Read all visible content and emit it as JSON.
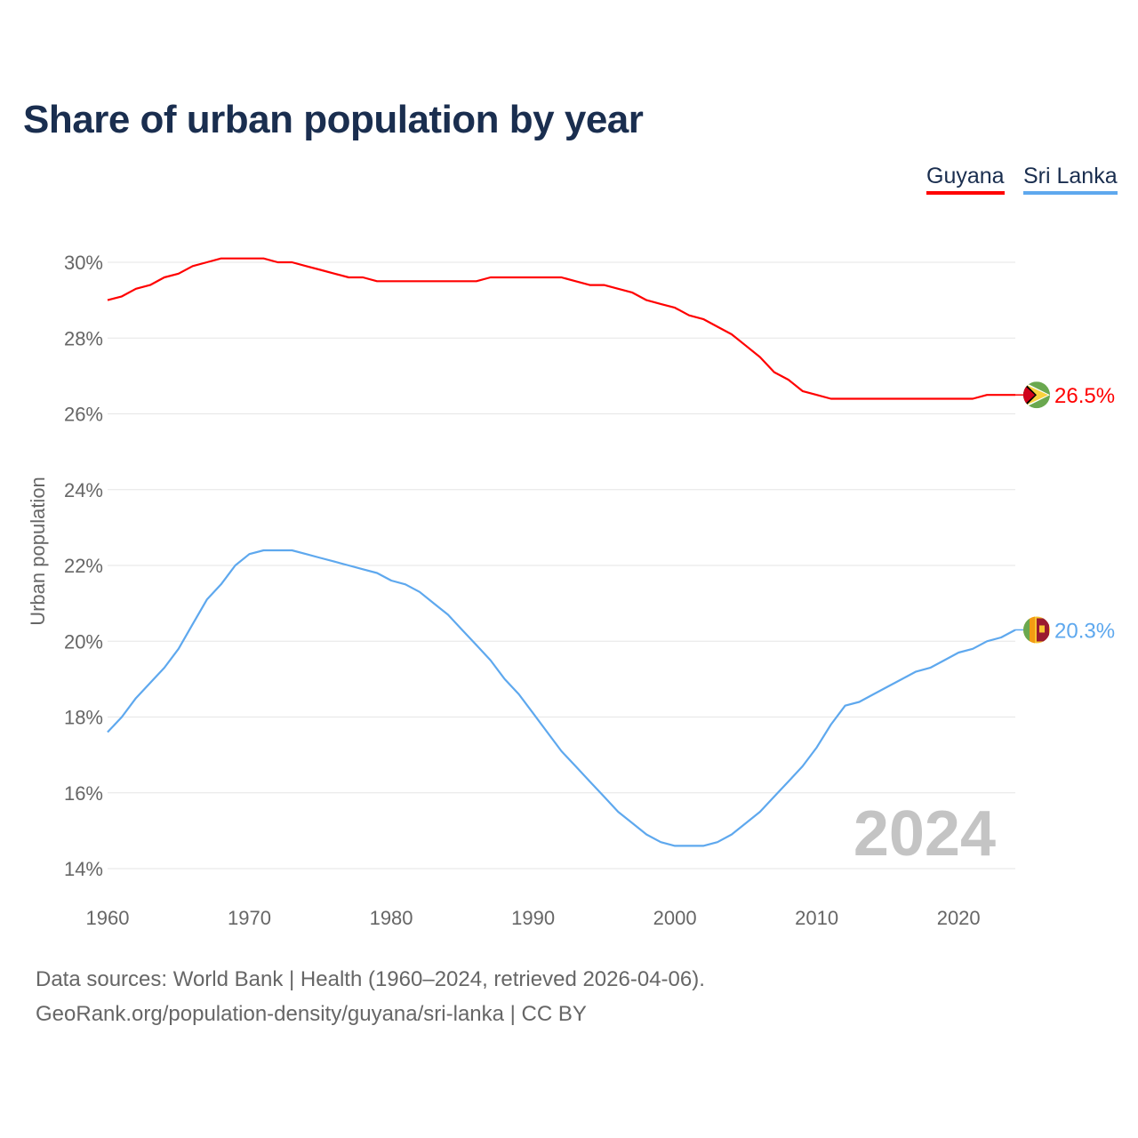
{
  "title": "Share of urban population by year",
  "footer": {
    "line1": "Data sources: World Bank | Health (1960–2024, retrieved 2026-04-06).",
    "line2": "GeoRank.org/population-density/guyana/sri-lanka | CC BY"
  },
  "chart_data": {
    "type": "line",
    "title": "Share of urban population by year",
    "xlabel": "",
    "ylabel": "Urban population",
    "ylim": [
      14,
      30
    ],
    "xlim": [
      1960,
      2024
    ],
    "yticks": [
      "14%",
      "16%",
      "18%",
      "20%",
      "22%",
      "24%",
      "26%",
      "28%",
      "30%"
    ],
    "ytick_values": [
      14,
      16,
      18,
      20,
      22,
      24,
      26,
      28,
      30
    ],
    "xticks": [
      "1960",
      "1970",
      "1980",
      "1990",
      "2000",
      "2010",
      "2020"
    ],
    "xtick_values": [
      1960,
      1970,
      1980,
      1990,
      2000,
      2010,
      2020
    ],
    "grid": true,
    "legend_position": "top-right",
    "watermark_year": "2024",
    "x_start": 1960,
    "series": [
      {
        "name": "Guyana",
        "color": "#ff0000",
        "end_label": "26.5%",
        "flag": "guyana-flag",
        "values": [
          29.0,
          29.1,
          29.3,
          29.4,
          29.6,
          29.7,
          29.9,
          30.0,
          30.1,
          30.1,
          30.1,
          30.1,
          30.0,
          30.0,
          29.9,
          29.8,
          29.7,
          29.6,
          29.6,
          29.5,
          29.5,
          29.5,
          29.5,
          29.5,
          29.5,
          29.5,
          29.5,
          29.6,
          29.6,
          29.6,
          29.6,
          29.6,
          29.6,
          29.5,
          29.4,
          29.4,
          29.3,
          29.2,
          29.0,
          28.9,
          28.8,
          28.6,
          28.5,
          28.3,
          28.1,
          27.8,
          27.5,
          27.1,
          26.9,
          26.6,
          26.5,
          26.4,
          26.4,
          26.4,
          26.4,
          26.4,
          26.4,
          26.4,
          26.4,
          26.4,
          26.4,
          26.4,
          26.5,
          26.5,
          26.5
        ]
      },
      {
        "name": "Sri Lanka",
        "color": "#5ea8ee",
        "end_label": "20.3%",
        "flag": "sri-lanka-flag",
        "values": [
          17.6,
          18.0,
          18.5,
          18.9,
          19.3,
          19.8,
          20.45,
          21.1,
          21.5,
          22.0,
          22.3,
          22.4,
          22.4,
          22.4,
          22.3,
          22.2,
          22.1,
          22.0,
          21.9,
          21.8,
          21.6,
          21.5,
          21.3,
          21.0,
          20.7,
          20.3,
          19.9,
          19.5,
          19.0,
          18.6,
          18.1,
          17.6,
          17.1,
          16.7,
          16.3,
          15.9,
          15.5,
          15.2,
          14.9,
          14.7,
          14.6,
          14.6,
          14.6,
          14.7,
          14.9,
          15.2,
          15.5,
          15.9,
          16.3,
          16.7,
          17.2,
          17.8,
          18.3,
          18.4,
          18.6,
          18.8,
          19.0,
          19.2,
          19.3,
          19.5,
          19.7,
          19.8,
          20.0,
          20.1,
          20.3
        ]
      }
    ]
  }
}
